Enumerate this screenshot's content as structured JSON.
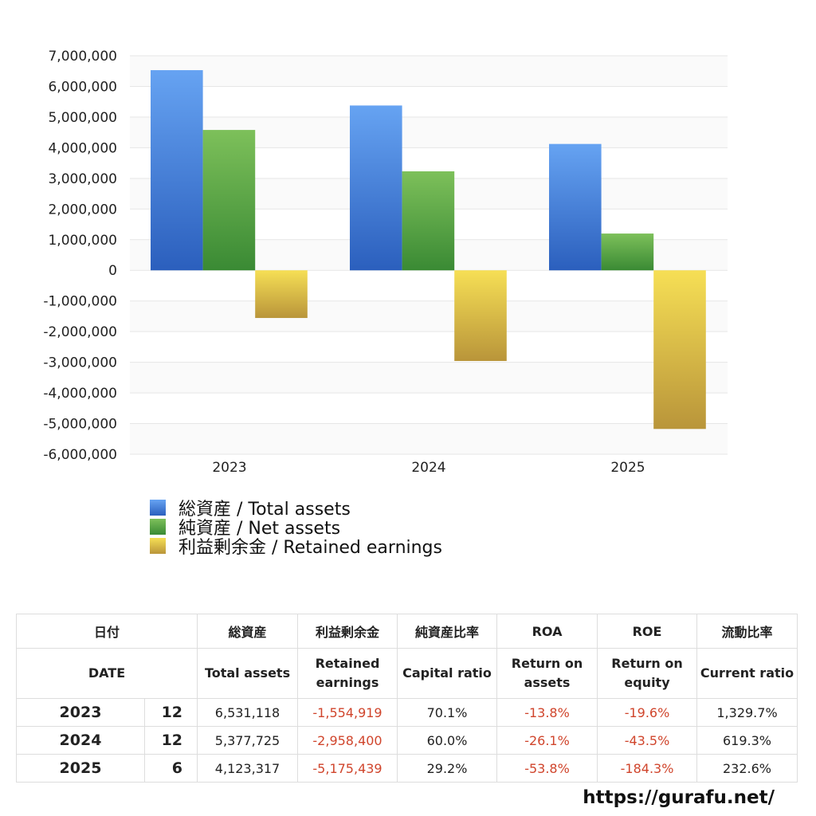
{
  "chart_data": {
    "type": "bar",
    "categories": [
      "2023",
      "2024",
      "2025"
    ],
    "series": [
      {
        "name": "総資産 / Total assets",
        "values": [
          6531118,
          5377725,
          4123317
        ],
        "color": "#4a86dc"
      },
      {
        "name": "純資産 / Net assets",
        "values": [
          4580000,
          3230000,
          1200000
        ],
        "color": "#5aa843"
      },
      {
        "name": "利益剰余金 / Retained earnings",
        "values": [
          -1554919,
          -2958400,
          -5175439
        ],
        "color": "#dcc04a"
      }
    ],
    "ylim": [
      -6000000,
      7000000
    ],
    "yticks": [
      7000000,
      6000000,
      5000000,
      4000000,
      3000000,
      2000000,
      1000000,
      0,
      -1000000,
      -2000000,
      -3000000,
      -4000000,
      -5000000,
      -6000000
    ],
    "ytick_labels": [
      "7,000,000",
      "6,000,000",
      "5,000,000",
      "4,000,000",
      "3,000,000",
      "2,000,000",
      "1,000,000",
      "0",
      "-1,000,000",
      "-2,000,000",
      "-3,000,000",
      "-4,000,000",
      "-5,000,000",
      "-6,000,000"
    ],
    "grid": true,
    "legend_position": "bottom-left"
  },
  "legend": {
    "items": [
      {
        "label": "総資産 / Total assets"
      },
      {
        "label": "純資産 / Net assets"
      },
      {
        "label": "利益剰余金 / Retained earnings"
      }
    ]
  },
  "table": {
    "header_ja": [
      "日付",
      "総資産",
      "利益剰余金",
      "純資産比率",
      "ROA",
      "ROE",
      "流動比率"
    ],
    "header_en": [
      "DATE",
      "Total assets",
      "Retained earnings",
      "Capital ratio",
      "Return on assets",
      "Return on equity",
      "Current ratio"
    ],
    "rows": [
      {
        "year": "2023",
        "month": "12",
        "total_assets": "6,531,118",
        "retained_earnings": "-1,554,919",
        "capital_ratio": "70.1%",
        "roa": "-13.8%",
        "roe": "-19.6%",
        "current_ratio": "1,329.7%"
      },
      {
        "year": "2024",
        "month": "12",
        "total_assets": "5,377,725",
        "retained_earnings": "-2,958,400",
        "capital_ratio": "60.0%",
        "roa": "-26.1%",
        "roe": "-43.5%",
        "current_ratio": "619.3%"
      },
      {
        "year": "2025",
        "month": "6",
        "total_assets": "4,123,317",
        "retained_earnings": "-5,175,439",
        "capital_ratio": "29.2%",
        "roa": "-53.8%",
        "roe": "-184.3%",
        "current_ratio": "232.6%"
      }
    ]
  },
  "footer": {
    "site": "https://gurafu.net/"
  }
}
